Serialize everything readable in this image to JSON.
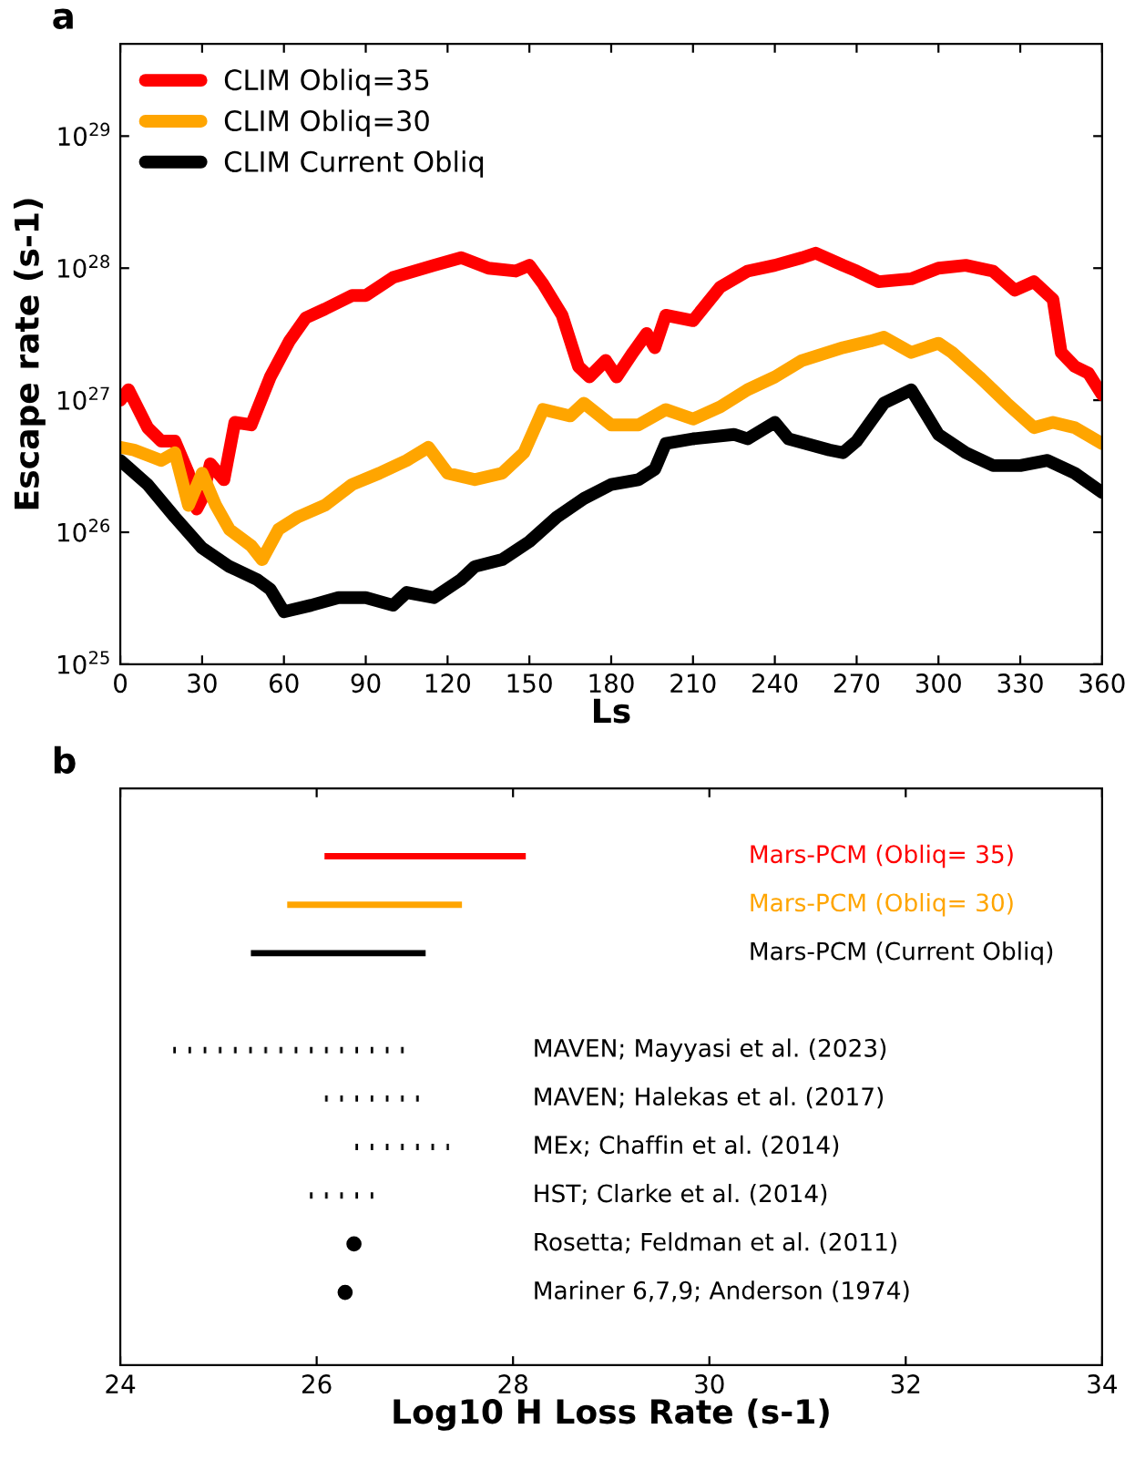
{
  "chart_data": [
    {
      "type": "line",
      "title": "a",
      "xlabel": "Ls",
      "ylabel": "Escape rate (s-1)",
      "log": "y",
      "xlim": [
        0,
        360
      ],
      "xticks": [
        0,
        30,
        60,
        90,
        120,
        150,
        180,
        210,
        240,
        270,
        300,
        330,
        360
      ],
      "ylim": [
        1e+25,
        5e+29
      ],
      "yticks": [
        {
          "value": 1e+25,
          "label": "10$^{25}$"
        },
        {
          "value": 1e+26,
          "label": "10$^{26}$"
        },
        {
          "value": 1e+27,
          "label": "10$^{27}$"
        },
        {
          "value": 1e+28,
          "label": "10$^{28}$"
        },
        {
          "value": 1e+29,
          "label": "10$^{29}$"
        }
      ],
      "legend": "top left",
      "grid": false,
      "series": [
        {
          "name": "CLIM Obliq=35",
          "color": "#ff0000",
          "x": [
            0,
            3,
            10,
            15,
            20,
            25,
            28,
            30,
            33,
            38,
            42,
            48,
            55,
            62,
            68,
            75,
            85,
            90,
            100,
            115,
            125,
            135,
            145,
            150,
            155,
            162,
            168,
            172,
            178,
            182,
            188,
            193,
            196,
            200,
            210,
            220,
            230,
            240,
            250,
            255,
            265,
            270,
            278,
            290,
            300,
            310,
            320,
            328,
            335,
            342,
            345,
            350,
            355,
            360
          ],
          "values": [
            1e+27,
            1.2e+27,
            6.2e+26,
            4.9e+26,
            4.9e+26,
            2.8e+26,
            1.5e+26,
            1.8e+26,
            3.3e+26,
            2.5e+26,
            6.8e+26,
            6.5e+26,
            1.5e+27,
            2.8e+27,
            4.2e+27,
            4.9e+27,
            6.2e+27,
            6.2e+27,
            8.5e+27,
            1.05e+28,
            1.2e+28,
            1e+28,
            9.5e+27,
            1.05e+28,
            7.6e+27,
            4.4e+27,
            1.8e+27,
            1.5e+27,
            2e+27,
            1.5e+27,
            2.3e+27,
            3.2e+27,
            2.5e+27,
            4.4e+27,
            4e+27,
            7.2e+27,
            9.5e+27,
            1.05e+28,
            1.2e+28,
            1.3e+28,
            1.05e+28,
            9.5e+27,
            7.9e+27,
            8.3e+27,
            1e+28,
            1.05e+28,
            9.5e+27,
            6.8e+27,
            7.9e+27,
            5.8e+27,
            2.3e+27,
            1.8e+27,
            1.6e+27,
            1.1e+27
          ]
        },
        {
          "name": "CLIM Obliq=30",
          "color": "#ffa500",
          "x": [
            0,
            5,
            15,
            20,
            25,
            30,
            35,
            40,
            48,
            52,
            58,
            65,
            75,
            85,
            95,
            105,
            113,
            120,
            130,
            140,
            148,
            155,
            165,
            170,
            180,
            190,
            200,
            210,
            220,
            230,
            240,
            250,
            265,
            275,
            280,
            290,
            300,
            305,
            315,
            325,
            335,
            342,
            350,
            360
          ],
          "values": [
            4.4e+26,
            4.2e+26,
            3.5e+26,
            4e+26,
            1.6e+26,
            2.8e+26,
            1.6e+26,
            1.05e+26,
            7.9e+25,
            6.2e+25,
            1.05e+26,
            1.3e+26,
            1.6e+26,
            2.3e+26,
            2.8e+26,
            3.5e+26,
            4.4e+26,
            2.8e+26,
            2.5e+26,
            2.8e+26,
            4e+26,
            8.5e+26,
            7.6e+26,
            9.5e+26,
            6.5e+26,
            6.5e+26,
            8.5e+26,
            7.2e+26,
            8.9e+26,
            1.2e+27,
            1.5e+27,
            2e+27,
            2.5e+27,
            2.8e+27,
            3e+27,
            2.3e+27,
            2.7e+27,
            2.3e+27,
            1.5e+27,
            9.5e+26,
            6.2e+26,
            6.8e+26,
            6.2e+26,
            4.7e+26
          ]
        },
        {
          "name": "CLIM Current Obliq",
          "color": "#000000",
          "x": [
            0,
            10,
            20,
            30,
            40,
            50,
            55,
            60,
            70,
            80,
            90,
            100,
            105,
            115,
            125,
            130,
            140,
            150,
            160,
            170,
            180,
            190,
            196,
            200,
            210,
            225,
            230,
            240,
            245,
            260,
            265,
            270,
            280,
            290,
            300,
            310,
            320,
            330,
            340,
            350,
            360
          ],
          "values": [
            3.5e+26,
            2.3e+26,
            1.3e+26,
            7.6e+25,
            5.5e+25,
            4.4e+25,
            3.7e+25,
            2.5e+25,
            2.8e+25,
            3.2e+25,
            3.2e+25,
            2.8e+25,
            3.5e+25,
            3.2e+25,
            4.4e+25,
            5.5e+25,
            6.2e+25,
            8.5e+25,
            1.3e+26,
            1.8e+26,
            2.3e+26,
            2.5e+26,
            3e+26,
            4.7e+26,
            5.1e+26,
            5.5e+26,
            5.1e+26,
            6.8e+26,
            5.1e+26,
            4.2e+26,
            4e+26,
            4.9e+26,
            9.5e+26,
            1.2e+27,
            5.5e+26,
            4e+26,
            3.2e+26,
            3.2e+26,
            3.5e+26,
            2.8e+26,
            2e+26
          ]
        }
      ]
    },
    {
      "type": "bar",
      "orientation": "horizontal",
      "title": "b",
      "xlabel": "Log10 H Loss Rate (s-1)",
      "xlim": [
        24,
        34
      ],
      "xticks": [
        24,
        26,
        28,
        30,
        32,
        34
      ],
      "tick_labels": "x",
      "grid": false,
      "categories": [
        "Mars-PCM (Obliq= 35)",
        "Mars-PCM (Obliq= 30)",
        "Mars-PCM (Current Obliq)",
        null,
        "MAVEN; Mayyasi et al. (2023)",
        "MAVEN; Halekas et al. (2017)",
        "MEx; Chaffin et al. (2014)",
        "HST; Clarke et al. (2014)",
        "Rosetta; Feldman et al. (2011)",
        "Mariner 6,7,9; Anderson (1974)"
      ],
      "series": [
        {
          "type": "bar",
          "line_style": "solid",
          "colors": [
            "#ff0000",
            "#ffa500",
            "#000000",
            null,
            null,
            null,
            null,
            null,
            null,
            null
          ],
          "base": [
            26.08,
            25.7,
            25.33,
            null,
            null,
            null,
            null,
            null,
            null,
            null
          ],
          "values": [
            2.05,
            1.78,
            1.78,
            null,
            null,
            null,
            null,
            null,
            null,
            null
          ]
        },
        {
          "type": "bar",
          "line_style": "dashed",
          "color": "#000000",
          "base": [
            null,
            null,
            null,
            null,
            24.5,
            25.98,
            26.38,
            25.89,
            null,
            null
          ],
          "values": [
            null,
            null,
            null,
            null,
            2.42,
            1.11,
            0.97,
            0.74,
            null,
            null
          ]
        },
        {
          "type": "scatter",
          "marker": "circle",
          "color": "#000000",
          "values": [
            null,
            null,
            null,
            null,
            null,
            null,
            null,
            null,
            26.38,
            26.29
          ]
        }
      ]
    }
  ]
}
